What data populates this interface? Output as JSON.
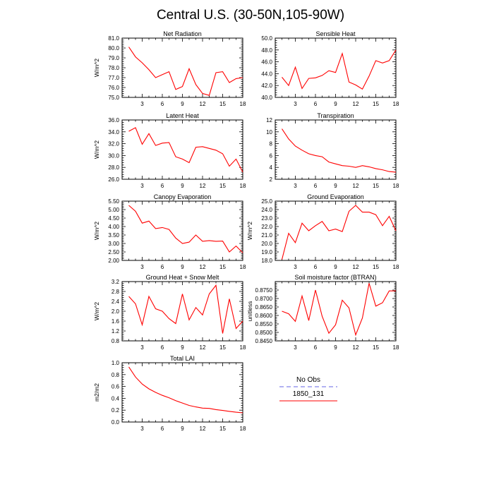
{
  "figure": {
    "title": "Central U.S. (30-50N,105-90W)"
  },
  "colors": {
    "model": "#ff0000",
    "obs": "#9999ee"
  },
  "legend": {
    "obs_label": "No Obs",
    "model_label": "1850_131"
  },
  "chart_data": [
    {
      "type": "line",
      "title": "Net Radiation",
      "ylabel": "W/m^2",
      "xlim": [
        0,
        18
      ],
      "ylim": [
        75.0,
        81.0
      ],
      "xticks": [
        3,
        6,
        9,
        12,
        15,
        18
      ],
      "yticks": [
        "75.0",
        "76.0",
        "77.0",
        "78.0",
        "79.0",
        "80.0",
        "81.0"
      ],
      "x": [
        1,
        2,
        3,
        4,
        5,
        6,
        7,
        8,
        9,
        10,
        11,
        12,
        13,
        14,
        15,
        16,
        17,
        18
      ],
      "series": [
        {
          "name": "1850_131",
          "values": [
            80.1,
            79.1,
            78.5,
            77.8,
            77.0,
            77.3,
            77.6,
            75.8,
            76.1,
            77.9,
            76.3,
            75.4,
            75.2,
            77.5,
            77.6,
            76.5,
            76.9,
            77.0
          ]
        }
      ]
    },
    {
      "type": "line",
      "title": "Sensible Heat",
      "ylabel": "",
      "xlim": [
        0,
        18
      ],
      "ylim": [
        40.0,
        50.0
      ],
      "xticks": [
        3,
        6,
        9,
        12,
        15,
        18
      ],
      "yticks": [
        "40.0",
        "42.0",
        "44.0",
        "46.0",
        "48.0",
        "50.0"
      ],
      "x": [
        1,
        2,
        3,
        4,
        5,
        6,
        7,
        8,
        9,
        10,
        11,
        12,
        13,
        14,
        15,
        16,
        17,
        18
      ],
      "series": [
        {
          "name": "1850_131",
          "values": [
            43.4,
            42.0,
            45.1,
            41.5,
            43.2,
            43.3,
            43.7,
            44.5,
            44.2,
            47.4,
            42.6,
            42.1,
            41.4,
            43.6,
            46.2,
            45.8,
            46.2,
            48.0
          ]
        }
      ]
    },
    {
      "type": "line",
      "title": "Latent Heat",
      "ylabel": "W/m^2",
      "xlim": [
        0,
        18
      ],
      "ylim": [
        26.0,
        36.0
      ],
      "xticks": [
        3,
        6,
        9,
        12,
        15,
        18
      ],
      "yticks": [
        "26.0",
        "28.0",
        "30.0",
        "32.0",
        "34.0",
        "36.0"
      ],
      "x": [
        1,
        2,
        3,
        4,
        5,
        6,
        7,
        8,
        9,
        10,
        11,
        12,
        13,
        14,
        15,
        16,
        17,
        18
      ],
      "series": [
        {
          "name": "1850_131",
          "values": [
            34.1,
            34.7,
            31.9,
            33.7,
            31.7,
            32.1,
            32.2,
            29.8,
            29.4,
            28.8,
            31.4,
            31.5,
            31.2,
            30.9,
            30.3,
            28.2,
            29.4,
            27.2
          ]
        }
      ]
    },
    {
      "type": "line",
      "title": "Transpiration",
      "ylabel": "",
      "xlim": [
        0,
        18
      ],
      "ylim": [
        2,
        12
      ],
      "xticks": [
        3,
        6,
        9,
        12,
        15,
        18
      ],
      "yticks": [
        "2",
        "4",
        "6",
        "8",
        "10",
        "12"
      ],
      "x": [
        1,
        2,
        3,
        4,
        5,
        6,
        7,
        8,
        9,
        10,
        11,
        12,
        13,
        14,
        15,
        16,
        17,
        18
      ],
      "series": [
        {
          "name": "1850_131",
          "values": [
            10.5,
            8.8,
            7.6,
            6.9,
            6.3,
            6.0,
            5.8,
            4.9,
            4.6,
            4.3,
            4.2,
            4.0,
            4.3,
            4.1,
            3.8,
            3.6,
            3.3,
            3.2
          ]
        }
      ]
    },
    {
      "type": "line",
      "title": "Canopy Evaporation",
      "ylabel": "W/m^2",
      "xlim": [
        0,
        18
      ],
      "ylim": [
        2.0,
        5.5
      ],
      "xticks": [
        3,
        6,
        9,
        12,
        15,
        18
      ],
      "yticks": [
        "2.00",
        "2.50",
        "3.00",
        "3.50",
        "4.00",
        "4.50",
        "5.00",
        "5.50"
      ],
      "x": [
        1,
        2,
        3,
        4,
        5,
        6,
        7,
        8,
        9,
        10,
        11,
        12,
        13,
        14,
        15,
        16,
        17,
        18
      ],
      "series": [
        {
          "name": "1850_131",
          "values": [
            5.25,
            4.9,
            4.2,
            4.32,
            3.88,
            3.94,
            3.83,
            3.32,
            3.0,
            3.08,
            3.5,
            3.13,
            3.17,
            3.13,
            3.14,
            2.5,
            2.85,
            2.45
          ]
        }
      ]
    },
    {
      "type": "line",
      "title": "Ground Evaporation",
      "ylabel": "W/m^2",
      "xlim": [
        0,
        18
      ],
      "ylim": [
        18.0,
        25.0
      ],
      "xticks": [
        3,
        6,
        9,
        12,
        15,
        18
      ],
      "yticks": [
        "18.0",
        "19.0",
        "20.0",
        "21.0",
        "22.0",
        "23.0",
        "24.0",
        "25.0"
      ],
      "x": [
        1,
        2,
        3,
        4,
        5,
        6,
        7,
        8,
        9,
        10,
        11,
        12,
        13,
        14,
        15,
        16,
        17,
        18
      ],
      "series": [
        {
          "name": "1850_131",
          "values": [
            18.1,
            21.2,
            20.1,
            22.4,
            21.5,
            22.1,
            22.6,
            21.5,
            21.7,
            21.4,
            23.8,
            24.5,
            23.7,
            23.7,
            23.4,
            22.1,
            23.2,
            21.5
          ]
        }
      ]
    },
    {
      "type": "line",
      "title": "Ground Heat + Snow Melt",
      "ylabel": "W/m^2",
      "xlim": [
        0,
        18
      ],
      "ylim": [
        0.8,
        3.2
      ],
      "xticks": [
        3,
        6,
        9,
        12,
        15,
        18
      ],
      "yticks": [
        "0.8",
        "1.2",
        "1.6",
        "2.0",
        "2.4",
        "2.8",
        "3.2"
      ],
      "x": [
        1,
        2,
        3,
        4,
        5,
        6,
        7,
        8,
        9,
        10,
        11,
        12,
        13,
        14,
        15,
        16,
        17,
        18
      ],
      "series": [
        {
          "name": "1850_131",
          "values": [
            2.6,
            2.3,
            1.45,
            2.6,
            2.1,
            2.0,
            1.7,
            1.5,
            2.7,
            1.65,
            2.15,
            1.85,
            2.7,
            3.05,
            1.1,
            2.5,
            1.3,
            1.6
          ]
        }
      ]
    },
    {
      "type": "line",
      "title": "Soil moisture factor (BTRAN)",
      "ylabel": "unitless",
      "xlim": [
        0,
        18
      ],
      "ylim": [
        0.845,
        0.88
      ],
      "xticks": [
        3,
        6,
        9,
        12,
        15,
        18
      ],
      "yticks": [
        "0.8450",
        "0.8500",
        "0.8550",
        "0.8600",
        "0.8650",
        "0.8700",
        "0.8750"
      ],
      "x": [
        1,
        2,
        3,
        4,
        5,
        6,
        7,
        8,
        9,
        10,
        11,
        12,
        13,
        14,
        15,
        16,
        17,
        18
      ],
      "series": [
        {
          "name": "1850_131",
          "values": [
            0.8625,
            0.861,
            0.8565,
            0.8715,
            0.857,
            0.875,
            0.8595,
            0.8495,
            0.8545,
            0.869,
            0.8645,
            0.8485,
            0.8585,
            0.879,
            0.8655,
            0.8675,
            0.8745,
            0.8745
          ]
        }
      ]
    },
    {
      "type": "line",
      "title": "Total LAI",
      "ylabel": "m2/m2",
      "xlim": [
        0,
        18
      ],
      "ylim": [
        0.0,
        1.0
      ],
      "xticks": [
        3,
        6,
        9,
        12,
        15,
        18
      ],
      "yticks": [
        "0.0",
        "0.2",
        "0.4",
        "0.6",
        "0.8",
        "1.0"
      ],
      "x": [
        1,
        2,
        3,
        4,
        5,
        6,
        7,
        8,
        9,
        10,
        11,
        12,
        13,
        14,
        15,
        16,
        17,
        18
      ],
      "series": [
        {
          "name": "1850_131",
          "values": [
            0.93,
            0.76,
            0.64,
            0.56,
            0.5,
            0.45,
            0.41,
            0.36,
            0.32,
            0.28,
            0.255,
            0.235,
            0.23,
            0.21,
            0.195,
            0.18,
            0.165,
            0.155
          ]
        }
      ]
    }
  ]
}
